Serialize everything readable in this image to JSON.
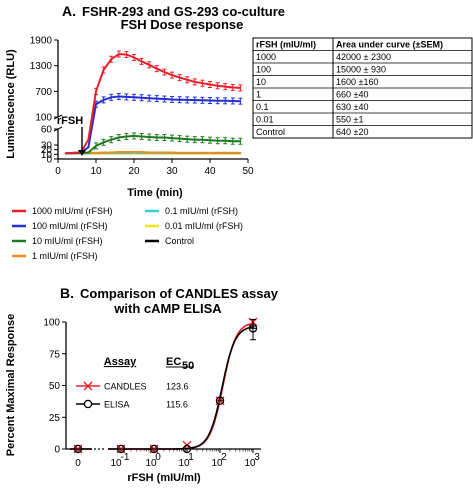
{
  "figure": {
    "panel_a": {
      "letter": "A.",
      "title_line1": "FSHR-293 and GS-293 co-culture",
      "title_line2": "FSH Dose response"
    },
    "panel_b": {
      "letter": "B.",
      "title_line1": "Comparison of CANDLES assay",
      "title_line2": "with cAMP ELISA"
    }
  },
  "chart_data": [
    {
      "type": "line",
      "title": "FSHR-293 and GS-293 co-culture FSH Dose response",
      "xlabel": "Time (min)",
      "ylabel": "Luminescence (RLU)",
      "xlim": [
        0,
        50
      ],
      "x_ticks": [
        "0",
        "10",
        "20",
        "30",
        "40",
        "50"
      ],
      "y_axis_segments": [
        {
          "range": [
            100,
            1900
          ],
          "ticks": [
            "100",
            "700",
            "1300",
            "1900"
          ]
        },
        {
          "range": [
            30,
            60
          ],
          "ticks": [
            "30",
            "60"
          ]
        },
        {
          "range": [
            0,
            30
          ],
          "ticks": [
            "0",
            "10",
            "20"
          ]
        }
      ],
      "annotation": {
        "text": "rFSH",
        "x": 5
      },
      "x": [
        2,
        4,
        6,
        8,
        10,
        12,
        14,
        16,
        18,
        20,
        22,
        24,
        26,
        28,
        30,
        32,
        34,
        36,
        38,
        40,
        42,
        44,
        46,
        48
      ],
      "series": [
        {
          "name": "1000 mIU/ml  (rFSH)",
          "color": "#e8202a",
          "values": [
            12,
            13,
            14,
            40,
            700,
            1200,
            1450,
            1570,
            1560,
            1490,
            1400,
            1320,
            1230,
            1150,
            1080,
            1020,
            970,
            920,
            890,
            860,
            830,
            810,
            790,
            780
          ]
        },
        {
          "name": "100 mIU/ml  (rFSH)",
          "color": "#2430d0",
          "values": [
            12,
            13,
            14,
            25,
            400,
            500,
            560,
            580,
            570,
            560,
            550,
            540,
            530,
            520,
            510,
            505,
            500,
            495,
            490,
            485,
            480,
            478,
            475,
            470
          ]
        },
        {
          "name": "10 mIU/ml  (rFSH)",
          "color": "#1e7a1e",
          "values": [
            12,
            12,
            13,
            14,
            28,
            35,
            40,
            44,
            46,
            47,
            46,
            45,
            44,
            44,
            43,
            42,
            41,
            40,
            40,
            39,
            38,
            38,
            37,
            37
          ]
        },
        {
          "name": "1 mIU/ml  (rFSH)",
          "color": "#f08a1c",
          "values": [
            12,
            12,
            12,
            13,
            13,
            14,
            14,
            15,
            15,
            15,
            15,
            14,
            14,
            14,
            14,
            13,
            13,
            13,
            13,
            13,
            13,
            13,
            13,
            13
          ]
        },
        {
          "name": "0.1 mIU/ml  (rFSH)",
          "color": "#37d2d2",
          "values": [
            12,
            12,
            12,
            12,
            13,
            13,
            13,
            13,
            13,
            13,
            13,
            13,
            13,
            13,
            13,
            13,
            13,
            13,
            13,
            13,
            13,
            13,
            13,
            13
          ]
        },
        {
          "name": "0.01 mIU/ml  (rFSH)",
          "color": "#f2e61a",
          "values": [
            12,
            12,
            12,
            12,
            12,
            12,
            12,
            12,
            12,
            12,
            12,
            12,
            12,
            12,
            12,
            12,
            12,
            12,
            12,
            12,
            12,
            12,
            12,
            12
          ]
        },
        {
          "name": "Control",
          "color": "#000000",
          "values": [
            12,
            12,
            12,
            12,
            12,
            12,
            12,
            12,
            12,
            12,
            12,
            12,
            12,
            12,
            12,
            12,
            12,
            12,
            12,
            12,
            12,
            12,
            12,
            12
          ]
        }
      ],
      "table": {
        "headers": [
          "rFSH (mIU/ml)",
          "Area under curve (±SEM)"
        ],
        "rows": [
          [
            "1000",
            "42000 ± 2300"
          ],
          [
            "100",
            "15000 ± 930"
          ],
          [
            "10",
            "1600 ±160"
          ],
          [
            "1",
            "660 ±40"
          ],
          [
            "0.1",
            "630 ±40"
          ],
          [
            "0.01",
            "550 ±1"
          ],
          [
            "Control",
            "640 ±20"
          ]
        ]
      }
    },
    {
      "type": "scatter",
      "title": "Comparison of CANDLES assay with cAMP ELISA",
      "xlabel": "rFSH (mIU/ml)",
      "ylabel": "Percent Maximal Response",
      "ylim": [
        0,
        100
      ],
      "y_ticks": [
        "0",
        "25",
        "50",
        "75",
        "100"
      ],
      "x_ticks": [
        "0",
        "10",
        "10",
        "10",
        "10",
        "10"
      ],
      "x_tick_exponents": [
        "",
        "-1",
        "0",
        "1",
        "2",
        "3"
      ],
      "x_scale": "log",
      "legend_header": {
        "assay": "Assay",
        "ec_base": "EC",
        "ec_sub": "50"
      },
      "series": [
        {
          "name": "CANDLES",
          "ec50": "123.6",
          "color": "#e8202a",
          "marker": "x",
          "x": [
            0,
            0.1,
            1,
            10,
            100,
            1000
          ],
          "values": [
            0,
            0,
            0,
            3,
            38,
            100
          ]
        },
        {
          "name": "ELISA",
          "ec50": "115.6",
          "color": "#000000",
          "marker": "circle",
          "x": [
            0,
            0.1,
            1,
            10,
            100,
            1000
          ],
          "values": [
            0,
            0,
            0,
            0,
            38,
            95
          ]
        }
      ]
    }
  ]
}
